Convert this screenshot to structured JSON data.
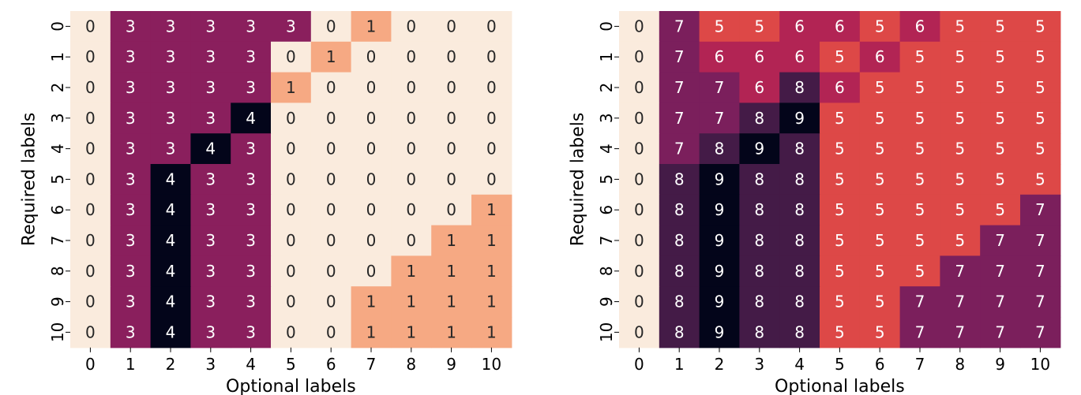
{
  "chart_data": [
    {
      "type": "heatmap",
      "title": "",
      "xlabel": "Optional labels",
      "ylabel": "Required labels",
      "x_categories": [
        "0",
        "1",
        "2",
        "3",
        "4",
        "5",
        "6",
        "7",
        "8",
        "9",
        "10"
      ],
      "y_categories": [
        "0",
        "1",
        "2",
        "3",
        "4",
        "5",
        "6",
        "7",
        "8",
        "9",
        "10"
      ],
      "annotated": true,
      "colorbar": false,
      "colormap": "rocket_r",
      "color_range": [
        0,
        4
      ],
      "values": [
        [
          0,
          3,
          3,
          3,
          3,
          3,
          0,
          1,
          0,
          0,
          0
        ],
        [
          0,
          3,
          3,
          3,
          3,
          0,
          1,
          0,
          0,
          0,
          0
        ],
        [
          0,
          3,
          3,
          3,
          3,
          1,
          0,
          0,
          0,
          0,
          0
        ],
        [
          0,
          3,
          3,
          3,
          4,
          0,
          0,
          0,
          0,
          0,
          0
        ],
        [
          0,
          3,
          3,
          4,
          3,
          0,
          0,
          0,
          0,
          0,
          0
        ],
        [
          0,
          3,
          4,
          3,
          3,
          0,
          0,
          0,
          0,
          0,
          0
        ],
        [
          0,
          3,
          4,
          3,
          3,
          0,
          0,
          0,
          0,
          0,
          1
        ],
        [
          0,
          3,
          4,
          3,
          3,
          0,
          0,
          0,
          0,
          1,
          1
        ],
        [
          0,
          3,
          4,
          3,
          3,
          0,
          0,
          0,
          1,
          1,
          1
        ],
        [
          0,
          3,
          4,
          3,
          3,
          0,
          0,
          1,
          1,
          1,
          1
        ],
        [
          0,
          3,
          4,
          3,
          3,
          0,
          0,
          1,
          1,
          1,
          1
        ]
      ]
    },
    {
      "type": "heatmap",
      "title": "",
      "xlabel": "Optional labels",
      "ylabel": "Required labels",
      "x_categories": [
        "0",
        "1",
        "2",
        "3",
        "4",
        "5",
        "6",
        "7",
        "8",
        "9",
        "10"
      ],
      "y_categories": [
        "0",
        "1",
        "2",
        "3",
        "4",
        "5",
        "6",
        "7",
        "8",
        "9",
        "10"
      ],
      "annotated": true,
      "colorbar": false,
      "colormap": "rocket_r",
      "color_range": [
        0,
        9
      ],
      "values": [
        [
          0,
          7,
          5,
          5,
          6,
          6,
          5,
          6,
          5,
          5,
          5
        ],
        [
          0,
          7,
          6,
          6,
          6,
          5,
          6,
          5,
          5,
          5,
          5
        ],
        [
          0,
          7,
          7,
          6,
          8,
          6,
          5,
          5,
          5,
          5,
          5
        ],
        [
          0,
          7,
          7,
          8,
          9,
          5,
          5,
          5,
          5,
          5,
          5
        ],
        [
          0,
          7,
          8,
          9,
          8,
          5,
          5,
          5,
          5,
          5,
          5
        ],
        [
          0,
          8,
          9,
          8,
          8,
          5,
          5,
          5,
          5,
          5,
          5
        ],
        [
          0,
          8,
          9,
          8,
          8,
          5,
          5,
          5,
          5,
          5,
          7
        ],
        [
          0,
          8,
          9,
          8,
          8,
          5,
          5,
          5,
          5,
          7,
          7
        ],
        [
          0,
          8,
          9,
          8,
          8,
          5,
          5,
          5,
          7,
          7,
          7
        ],
        [
          0,
          8,
          9,
          8,
          8,
          5,
          5,
          7,
          7,
          7,
          7
        ],
        [
          0,
          8,
          9,
          8,
          8,
          5,
          5,
          7,
          7,
          7,
          7
        ]
      ]
    }
  ]
}
